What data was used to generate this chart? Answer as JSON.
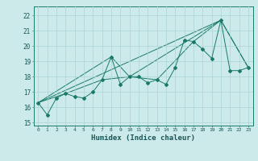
{
  "xlabel": "Humidex (Indice chaleur)",
  "bg_color": "#cceaea",
  "line_color": "#1a7a6a",
  "grid_color": "#aad4d4",
  "xlim": [
    -0.5,
    23.5
  ],
  "ylim": [
    14.8,
    22.6
  ],
  "yticks": [
    15,
    16,
    17,
    18,
    19,
    20,
    21,
    22
  ],
  "xticks": [
    0,
    1,
    2,
    3,
    4,
    5,
    6,
    7,
    8,
    9,
    10,
    11,
    12,
    13,
    14,
    15,
    16,
    17,
    18,
    19,
    20,
    21,
    22,
    23
  ],
  "series1": [
    [
      0,
      16.3
    ],
    [
      1,
      15.5
    ],
    [
      2,
      16.6
    ],
    [
      3,
      16.9
    ],
    [
      4,
      16.7
    ],
    [
      5,
      16.6
    ],
    [
      6,
      17.0
    ],
    [
      7,
      17.8
    ],
    [
      8,
      19.3
    ],
    [
      9,
      17.5
    ],
    [
      10,
      18.0
    ],
    [
      11,
      18.0
    ],
    [
      12,
      17.6
    ],
    [
      13,
      17.8
    ],
    [
      14,
      17.5
    ],
    [
      15,
      18.6
    ],
    [
      16,
      20.4
    ],
    [
      17,
      20.3
    ],
    [
      18,
      19.8
    ],
    [
      19,
      19.2
    ],
    [
      20,
      21.7
    ],
    [
      21,
      18.4
    ],
    [
      22,
      18.4
    ],
    [
      23,
      18.6
    ]
  ],
  "series2": [
    [
      0,
      16.3
    ],
    [
      3,
      16.9
    ],
    [
      7,
      17.8
    ],
    [
      10,
      18.0
    ],
    [
      13,
      17.8
    ],
    [
      17,
      20.3
    ],
    [
      20,
      21.7
    ],
    [
      23,
      18.6
    ]
  ],
  "series3": [
    [
      0,
      16.3
    ],
    [
      8,
      19.3
    ],
    [
      10,
      18.0
    ],
    [
      20,
      21.7
    ]
  ],
  "series4": [
    [
      0,
      16.3
    ],
    [
      20,
      21.7
    ],
    [
      23,
      18.6
    ]
  ]
}
